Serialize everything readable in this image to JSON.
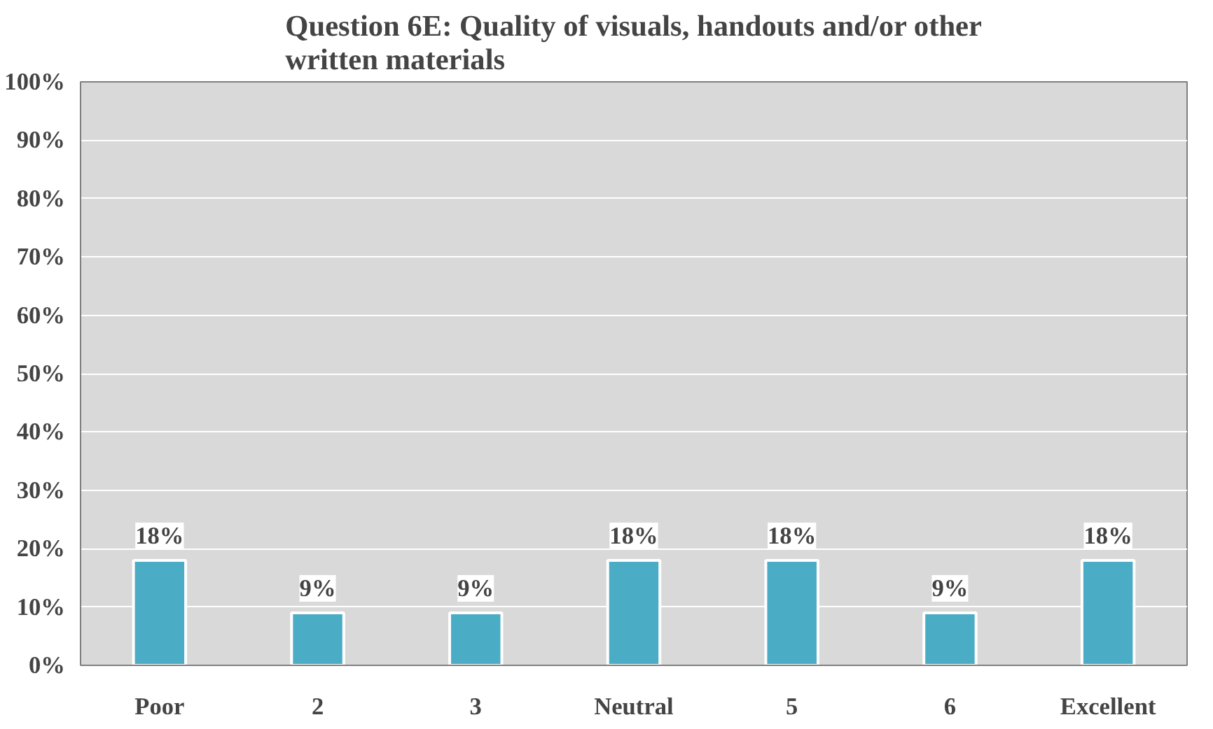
{
  "chart_data": {
    "type": "bar",
    "title": "Question 6E: Quality of visuals, handouts and/or other\nwritten materials",
    "categories": [
      "Poor",
      "2",
      "3",
      "Neutral",
      "5",
      "6",
      "Excellent"
    ],
    "values": [
      18,
      9,
      9,
      18,
      18,
      9,
      18
    ],
    "value_labels": [
      "18%",
      "9%",
      "9%",
      "18%",
      "18%",
      "9%",
      "18%"
    ],
    "color": "#4bacc6",
    "ylim": [
      0,
      100
    ],
    "yticks": [
      {
        "value": 0,
        "label": "0%"
      },
      {
        "value": 10,
        "label": "10%"
      },
      {
        "value": 20,
        "label": "20%"
      },
      {
        "value": 30,
        "label": "30%"
      },
      {
        "value": 40,
        "label": "40%"
      },
      {
        "value": 50,
        "label": "50%"
      },
      {
        "value": 60,
        "label": "60%"
      },
      {
        "value": 70,
        "label": "70%"
      },
      {
        "value": 80,
        "label": "80%"
      },
      {
        "value": 90,
        "label": "90%"
      },
      {
        "value": 100,
        "label": "100%"
      }
    ],
    "grid": "y"
  }
}
